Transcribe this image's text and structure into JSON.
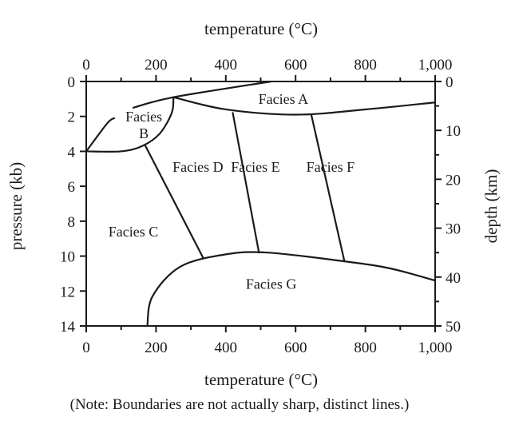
{
  "chart_data": {
    "type": "phase-diagram",
    "top_axis_label": "temperature (°C)",
    "bottom_axis_label": "temperature (°C)",
    "left_axis_label": "pressure (kb)",
    "right_axis_label": "depth (km)",
    "top_ticks": [
      "0",
      "200",
      "400",
      "600",
      "800",
      "1,000"
    ],
    "bottom_ticks": [
      "0",
      "200",
      "400",
      "600",
      "800",
      "1,000"
    ],
    "left_ticks": [
      "0",
      "2",
      "4",
      "6",
      "8",
      "10",
      "12",
      "14"
    ],
    "right_ticks": [
      "0",
      "10",
      "20",
      "30",
      "40",
      "50"
    ],
    "xlim": [
      0,
      1000
    ],
    "ylim_pressure_kb": [
      0,
      14
    ],
    "ylim_depth_km": [
      0,
      50
    ],
    "facies": [
      {
        "name": "Facies A",
        "label_lines": [
          "Facies A"
        ],
        "at": [
          565,
          1.0
        ]
      },
      {
        "name": "Facies B",
        "label_lines": [
          "Facies",
          "B"
        ],
        "at": [
          165,
          2.5
        ]
      },
      {
        "name": "Facies C",
        "label_lines": [
          "Facies C"
        ],
        "at": [
          135,
          8.6
        ]
      },
      {
        "name": "Facies D",
        "label_lines": [
          "Facies D"
        ],
        "at": [
          320,
          4.9
        ]
      },
      {
        "name": "Facies E",
        "label_lines": [
          "Facies E"
        ],
        "at": [
          485,
          4.9
        ]
      },
      {
        "name": "Facies F",
        "label_lines": [
          "Facies F"
        ],
        "at": [
          700,
          4.9
        ]
      },
      {
        "name": "Facies G",
        "label_lines": [
          "Facies G"
        ],
        "at": [
          530,
          11.6
        ]
      }
    ],
    "boundaries": [
      {
        "name": "A-lower-left",
        "points": [
          [
            135,
            1.5
          ],
          [
            250,
            0.9
          ],
          [
            530,
            0.0
          ]
        ]
      },
      {
        "name": "A-lower-main",
        "points": [
          [
            250,
            0.9
          ],
          [
            400,
            1.6
          ],
          [
            600,
            1.9
          ],
          [
            800,
            1.6
          ],
          [
            1000,
            1.2
          ]
        ]
      },
      {
        "name": "B-left",
        "points": [
          [
            0,
            4.0
          ],
          [
            60,
            2.4
          ],
          [
            80,
            2.1
          ]
        ]
      },
      {
        "name": "B-bottom",
        "points": [
          [
            0,
            4.0
          ],
          [
            100,
            4.0
          ],
          [
            160,
            3.7
          ],
          [
            210,
            3.0
          ],
          [
            245,
            1.8
          ],
          [
            250,
            0.9
          ]
        ]
      },
      {
        "name": "C-D",
        "points": [
          [
            170,
            3.7
          ],
          [
            335,
            10.1
          ]
        ]
      },
      {
        "name": "D-E",
        "points": [
          [
            420,
            1.8
          ],
          [
            495,
            9.8
          ]
        ]
      },
      {
        "name": "E-F",
        "points": [
          [
            645,
            1.9
          ],
          [
            740,
            10.3
          ]
        ]
      },
      {
        "name": "G-upper",
        "points": [
          [
            175,
            14.0
          ],
          [
            190,
            12.3
          ],
          [
            270,
            10.6
          ],
          [
            400,
            9.9
          ],
          [
            520,
            9.8
          ],
          [
            740,
            10.3
          ],
          [
            870,
            10.7
          ],
          [
            1000,
            11.4
          ]
        ]
      }
    ]
  },
  "note": "(Note: Boundaries are not actually sharp, distinct lines.)"
}
